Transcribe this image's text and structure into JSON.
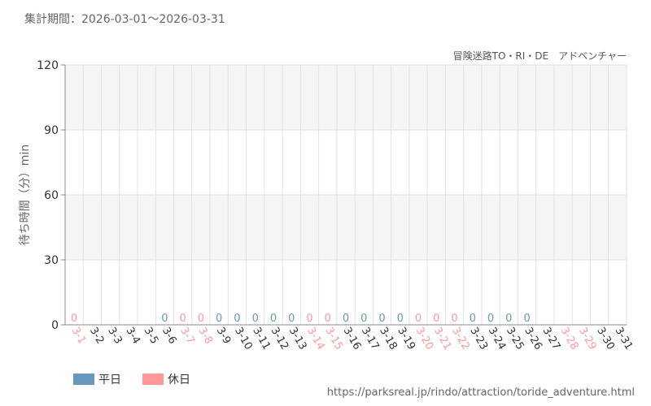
{
  "chart_data": {
    "type": "bar",
    "period_label": "集計期間：2026-03-01～2026-03-31",
    "subtitle": "冒険迷路TO・RI・DE　アドベンチャー",
    "ylabel": "待ち時間（分）min",
    "ylim": [
      0,
      120
    ],
    "yticks": [
      0,
      30,
      60,
      90,
      120
    ],
    "grid": true,
    "legend_position": "bottom-left",
    "categories": [
      "3-1",
      "3-2",
      "3-3",
      "3-4",
      "3-5",
      "3-6",
      "3-7",
      "3-8",
      "3-9",
      "3-10",
      "3-11",
      "3-12",
      "3-13",
      "3-14",
      "3-15",
      "3-16",
      "3-17",
      "3-18",
      "3-19",
      "3-20",
      "3-21",
      "3-22",
      "3-23",
      "3-24",
      "3-25",
      "3-26",
      "3-27",
      "3-28",
      "3-29",
      "3-30",
      "3-31"
    ],
    "day_type": [
      "holiday",
      "weekday",
      "weekday",
      "weekday",
      "weekday",
      "weekday",
      "holiday",
      "holiday",
      "weekday",
      "weekday",
      "weekday",
      "weekday",
      "weekday",
      "holiday",
      "holiday",
      "weekday",
      "weekday",
      "weekday",
      "weekday",
      "holiday",
      "holiday",
      "holiday",
      "weekday",
      "weekday",
      "weekday",
      "weekday",
      "weekday",
      "holiday",
      "holiday",
      "weekday",
      "weekday"
    ],
    "values": [
      0,
      null,
      null,
      null,
      null,
      0,
      0,
      0,
      0,
      0,
      0,
      0,
      0,
      0,
      0,
      0,
      0,
      0,
      0,
      0,
      0,
      0,
      0,
      0,
      0,
      0,
      null,
      null,
      null,
      null,
      null
    ],
    "series": [
      {
        "name": "平日",
        "color": "#6699bb"
      },
      {
        "name": "休日",
        "color": "#ff9999"
      }
    ],
    "footer_url": "https://parksreal.jp/rindo/attraction/toride_adventure.html",
    "colors": {
      "weekday_text": "#333333",
      "holiday_text": "#ff9999",
      "grid": "#e2e2e2",
      "band": "#f5f5f5",
      "axis": "#888888"
    }
  }
}
